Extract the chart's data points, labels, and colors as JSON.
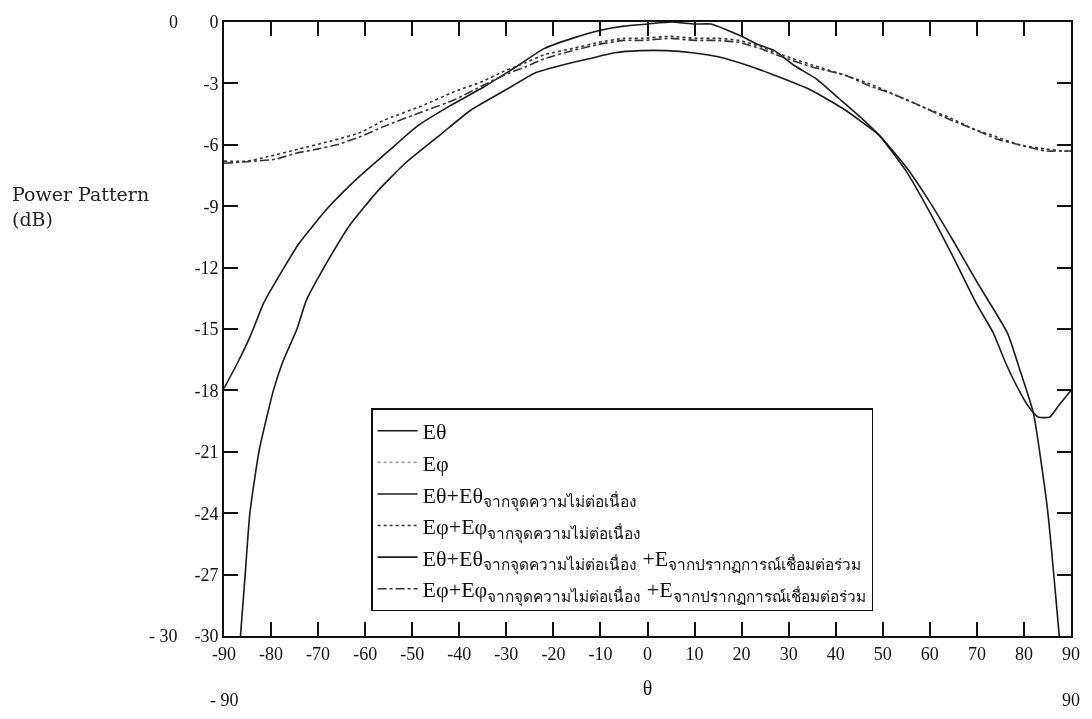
{
  "chart_data": {
    "type": "line",
    "xlabel": "θ",
    "ylabel": "Power Pattern\n(dB)",
    "xlim": [
      -90,
      90
    ],
    "ylim": [
      -30,
      0
    ],
    "xticks": [
      -90,
      -80,
      -70,
      -60,
      -50,
      -40,
      -30,
      -20,
      -10,
      0,
      10,
      20,
      30,
      40,
      50,
      60,
      70,
      80,
      90
    ],
    "yticks": [
      0,
      -3,
      -6,
      -9,
      -12,
      -15,
      -18,
      -21,
      -24,
      -27,
      -30
    ],
    "legend": "bottom",
    "annotations": [
      "0",
      "- 30",
      "- 90",
      "90"
    ],
    "series": [
      {
        "name": "Eθ",
        "color": "#1a1a1a",
        "line_style": "solid",
        "x": [
          -86.5,
          -85.5,
          -84.5,
          -82.5,
          -79.5,
          -77.5,
          -74.5,
          -72.5,
          -68,
          -63.5,
          -57.5,
          -51.5,
          -44,
          -37.5,
          -30,
          -24,
          -18,
          -12.5,
          -7,
          -1.5,
          4,
          9.5,
          15,
          21,
          27,
          34.5,
          42,
          48,
          49.5,
          55,
          60,
          65,
          70,
          76.5,
          79,
          82,
          85,
          87.5
        ],
        "values": [
          -30,
          -27,
          -24,
          -20.9,
          -18,
          -16.6,
          -15,
          -13.6,
          -11.7,
          -10,
          -8.3,
          -6.9,
          -5.5,
          -4.3,
          -3.3,
          -2.5,
          -2.1,
          -1.8,
          -1.5,
          -1.4,
          -1.4,
          -1.5,
          -1.7,
          -2.1,
          -2.6,
          -3.3,
          -4.3,
          -5.3,
          -5.6,
          -7.1,
          -8.8,
          -10.7,
          -12.7,
          -15.2,
          -16.9,
          -19.1,
          -23.8,
          -30
        ]
      },
      {
        "name": "Eφ",
        "color": "#a0a0a0",
        "line_style": "dotted",
        "values": [
          null
        ]
      },
      {
        "name": "Eθ+Eθ$_{จากจุดความไม่ต่อเนื่อง}$",
        "color": "#1a1a1a",
        "line_style": "solid",
        "x": [
          -90,
          -87,
          -84.5,
          -81.5,
          -77.5,
          -74,
          -68,
          -61.5,
          -55,
          -49,
          -42,
          -35,
          -28,
          -22,
          -16,
          -10,
          -5,
          0,
          5,
          10,
          13.5,
          17,
          20,
          23.5,
          27,
          31,
          36,
          40.5,
          45,
          49.5,
          55,
          60,
          65,
          70,
          73.5,
          76,
          78.5,
          81,
          83,
          85.5,
          87.5,
          90
        ],
        "values": [
          -17.9,
          -16.6,
          -15.4,
          -13.7,
          -12.1,
          -10.8,
          -9.1,
          -7.6,
          -6.3,
          -5.1,
          -4.1,
          -3.2,
          -2.2,
          -1.3,
          -0.8,
          -0.4,
          -0.2,
          -0.1,
          0,
          -0.1,
          -0.1,
          -0.4,
          -0.7,
          -1.1,
          -1.4,
          -2.1,
          -2.8,
          -3.7,
          -4.6,
          -5.6,
          -7.3,
          -9.3,
          -11.5,
          -13.8,
          -15.2,
          -16.6,
          -17.8,
          -18.8,
          -19.3,
          -19.3,
          -18.7,
          -18
        ]
      },
      {
        "name": "Eφ+Eφ$_{จากจุดความไม่ต่อเนื่อง}$",
        "color": "#333333",
        "line_style": "dotted",
        "x": [
          -90,
          -85,
          -81,
          -74,
          -67,
          -61,
          -56,
          -48,
          -41,
          -35,
          -30.5,
          -26,
          -22,
          -16,
          -10.5,
          -5,
          -1,
          5,
          10,
          15,
          19.5,
          24,
          28.5,
          35,
          42,
          47,
          53,
          59,
          64.5,
          69,
          74,
          79,
          84.5,
          88.5,
          90
        ],
        "values": [
          -6.8,
          -6.8,
          -6.6,
          -6.2,
          -5.8,
          -5.4,
          -4.8,
          -4.1,
          -3.4,
          -2.9,
          -2.4,
          -2,
          -1.6,
          -1.3,
          -1,
          -0.8,
          -0.8,
          -0.7,
          -0.8,
          -0.8,
          -0.9,
          -1.2,
          -1.6,
          -2.1,
          -2.6,
          -3,
          -3.6,
          -4.2,
          -4.7,
          -5.2,
          -5.6,
          -6,
          -6.2,
          -6.3,
          -6.3
        ]
      },
      {
        "name": "Eθ+Eθ$_{จากจุดความไม่ต่อเนื่อง}$ +E$_{จากปรากฏการณ์เชื่อมต่อร่วม}$",
        "color": "#1a1a1a",
        "line_style": "solid",
        "values": [
          null
        ]
      },
      {
        "name": "Eφ+Eφ$_{จากจุดความไม่ต่อเนื่อง}$ +E$_{จากปรากฏการณ์เชื่อมต่อร่วม}$",
        "color": "#333333",
        "line_style": "dashdot",
        "x": [
          -90,
          -83.5,
          -79,
          -74.5,
          -70,
          -66,
          -61,
          -56,
          -48,
          -41,
          -35,
          -30.5,
          -26,
          -22,
          -16,
          -10.5,
          -5,
          -1,
          5,
          10,
          15,
          19.5,
          24,
          28.5,
          35,
          42,
          47,
          53,
          59,
          64.5,
          69,
          74,
          79,
          84.5,
          88.5,
          90
        ],
        "values": [
          -6.9,
          -6.8,
          -6.7,
          -6.4,
          -6.2,
          -6,
          -5.6,
          -5.1,
          -4.4,
          -3.8,
          -3.1,
          -2.6,
          -2.2,
          -1.8,
          -1.4,
          -1.1,
          -0.9,
          -0.9,
          -0.8,
          -0.9,
          -0.9,
          -1,
          -1.3,
          -1.7,
          -2.2,
          -2.6,
          -3.1,
          -3.6,
          -4.2,
          -4.8,
          -5.2,
          -5.7,
          -6,
          -6.3,
          -6.3,
          -6.3
        ]
      }
    ]
  }
}
